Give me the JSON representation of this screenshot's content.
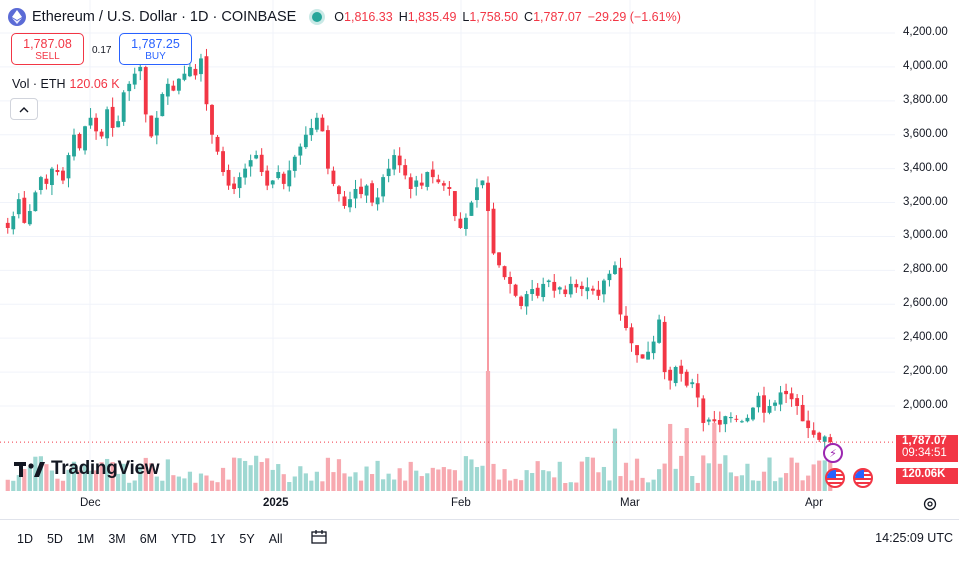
{
  "header": {
    "title": "Ethereum / U.S. Dollar · 1D · COINBASE",
    "open_label": "O",
    "open": "1,816.33",
    "high_label": "H",
    "high": "1,835.49",
    "low_label": "L",
    "low": "1,758.50",
    "close_label": "C",
    "close": "1,787.07",
    "change": "−29.29 (−1.61%)"
  },
  "trade": {
    "sell_price": "1,787.08",
    "sell_label": "SELL",
    "spread": "0.17",
    "buy_price": "1,787.25",
    "buy_label": "BUY"
  },
  "volume_legend": {
    "label": "Vol · ETH",
    "value": "120.06 K"
  },
  "logo_text": "TradingView",
  "price_axis": {
    "labels": [
      "4,200.00",
      "4,000.00",
      "3,800.00",
      "3,600.00",
      "3,400.00",
      "3,200.00",
      "3,000.00",
      "2,800.00",
      "2,600.00",
      "2,400.00",
      "2,200.00",
      "2,000.00"
    ],
    "last_price": "1,787.07",
    "countdown": "09:34:51",
    "volume_tag": "120.06K"
  },
  "time_axis": {
    "labels": [
      "Dec",
      "2025",
      "Feb",
      "Mar",
      "Apr"
    ]
  },
  "toolbar": {
    "timeframes": [
      "1D",
      "5D",
      "1M",
      "3M",
      "6M",
      "YTD",
      "1Y",
      "5Y",
      "All"
    ],
    "clock": "14:25:09 UTC"
  },
  "colors": {
    "up": "#26a69a",
    "down": "#f23645",
    "up_volume": "#9fd8d2",
    "down_volume": "#f7a9b0",
    "grid": "#f0f3fa"
  },
  "icons": {
    "compare": "compare-icon",
    "settings": "gear-icon",
    "flag": "us-flag-icon",
    "event": "lightning-icon",
    "collapse": "chevron-up-icon"
  },
  "chart_data": {
    "type": "candlestick",
    "symbol": "Ethereum / U.S. Dollar",
    "interval": "1D",
    "exchange": "COINBASE",
    "y_range": [
      1700,
      4300
    ],
    "x_ticks": [
      "Dec",
      "2025",
      "Feb",
      "Mar",
      "Apr"
    ],
    "last": {
      "open": 1816.33,
      "high": 1835.49,
      "low": 1758.5,
      "close": 1787.07,
      "volume_k": 120.06
    },
    "closes": [
      3050,
      3120,
      3220,
      3080,
      3150,
      3260,
      3350,
      3310,
      3400,
      3380,
      3330,
      3480,
      3600,
      3520,
      3650,
      3700,
      3620,
      3590,
      3750,
      3640,
      3680,
      3850,
      3900,
      3960,
      4000,
      3720,
      3590,
      3700,
      3840,
      3900,
      3860,
      3930,
      3960,
      4000,
      3950,
      4050,
      3780,
      3600,
      3500,
      3380,
      3300,
      3280,
      3350,
      3400,
      3450,
      3480,
      3380,
      3300,
      3330,
      3380,
      3310,
      3390,
      3470,
      3530,
      3600,
      3640,
      3700,
      3620,
      3400,
      3310,
      3250,
      3180,
      3220,
      3280,
      3250,
      3300,
      3200,
      3230,
      3350,
      3400,
      3480,
      3420,
      3360,
      3280,
      3330,
      3300,
      3380,
      3350,
      3320,
      3300,
      3280,
      3120,
      3050,
      3110,
      3200,
      3290,
      3330,
      3150,
      2900,
      2830,
      2760,
      2720,
      2650,
      2590,
      2660,
      2690,
      2650,
      2720,
      2740,
      2680,
      2700,
      2660,
      2720,
      2700,
      2690,
      2700,
      2680,
      2650,
      2740,
      2780,
      2830,
      2540,
      2460,
      2370,
      2300,
      2280,
      2320,
      2380,
      2510,
      2200,
      2150,
      2230,
      2190,
      2120,
      2140,
      2050,
      1900,
      1920,
      1910,
      1890,
      1940,
      1935,
      1920,
      1910,
      1930,
      1990,
      2060,
      1960,
      2000,
      2020,
      2080,
      2070,
      2040,
      2000,
      1910,
      1870,
      1830,
      1800,
      1820,
      1787.07
    ],
    "volume_note": "volume bars follow candle direction"
  }
}
